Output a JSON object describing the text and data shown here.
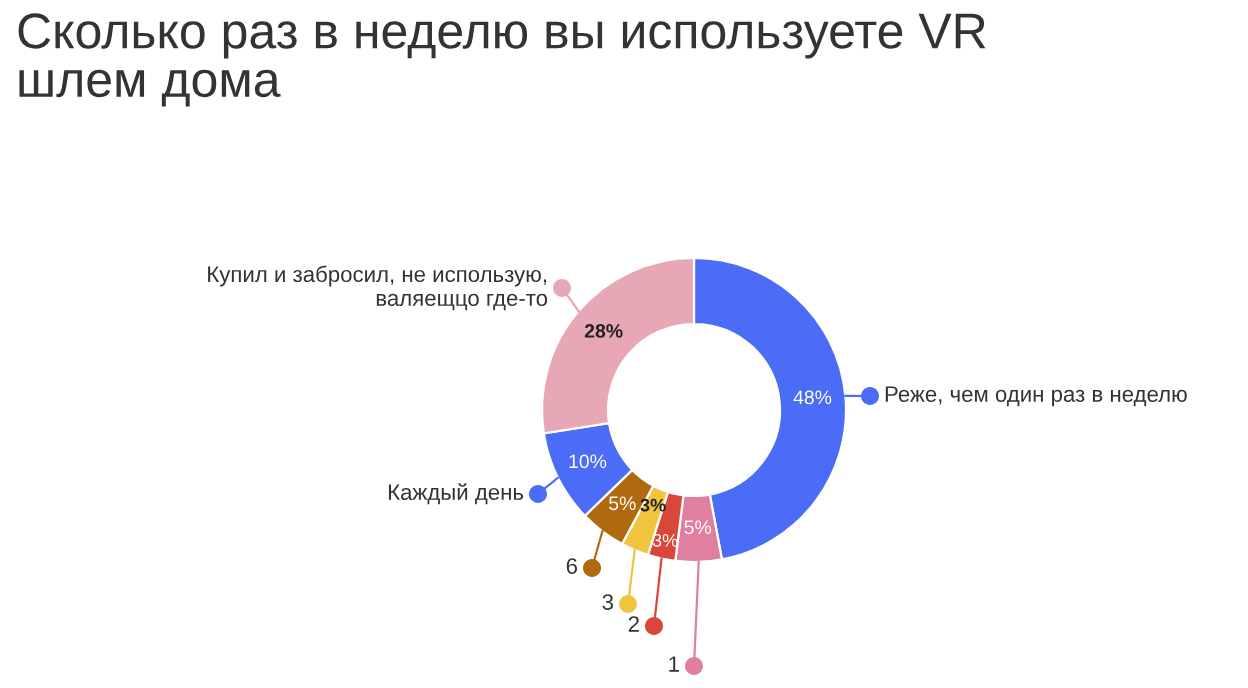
{
  "chart_data": {
    "type": "donut",
    "title": "Сколько раз в неделю вы используете VR\nшлем дома",
    "categories": [
      "Реже, чем один раз в неделю",
      "1",
      "2",
      "3",
      "6",
      "Каждый день",
      "Купил и забросил, не использую,\nваляещцо где-то"
    ],
    "values": [
      48,
      5,
      3,
      3,
      5,
      10,
      28
    ],
    "colors": [
      "#4a6cf7",
      "#e17fa0",
      "#d9473a",
      "#f0c43c",
      "#b0690e",
      "#4a6cf7",
      "#e8a7b5"
    ],
    "value_labels": [
      "48%",
      "5%",
      "3%",
      "3%",
      "5%",
      "10%",
      "28%"
    ],
    "legend": "left"
  }
}
